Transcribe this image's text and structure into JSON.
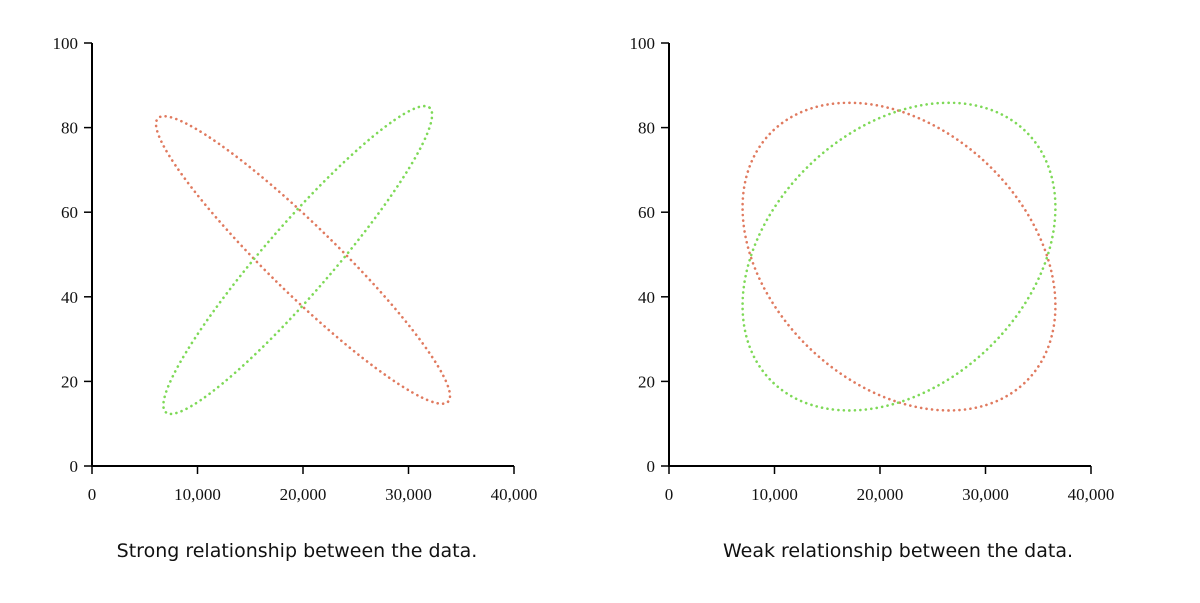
{
  "chart_data": [
    {
      "type": "scatter",
      "caption": "Strong relationship between the data.",
      "xlim": [
        0,
        40000
      ],
      "ylim": [
        0,
        100
      ],
      "x_ticks": [
        0,
        10000,
        20000,
        30000,
        40000
      ],
      "x_tick_labels": [
        "0",
        "10,000",
        "20,000",
        "30,000",
        "40,000"
      ],
      "y_ticks": [
        0,
        20,
        40,
        60,
        80,
        100
      ],
      "y_tick_labels": [
        "0",
        "20",
        "40",
        "60",
        "80",
        "100"
      ],
      "series": [
        {
          "color": "#e07a5f",
          "ellipse": {
            "cx": 20000,
            "cy": 48.7,
            "end_a": [
              6500,
              82
            ],
            "end_b": [
              34000,
              15
            ]
          }
        },
        {
          "color": "#7ed957",
          "ellipse": {
            "cx": 19500,
            "cy": 48.7,
            "end_a": [
              7500,
              13
            ],
            "end_b": [
              32500,
              85
            ]
          }
        }
      ]
    },
    {
      "type": "scatter",
      "caption": "Weak relationship between the data.",
      "xlim": [
        0,
        40000
      ],
      "ylim": [
        0,
        100
      ],
      "x_ticks": [
        0,
        10000,
        20000,
        30000,
        40000
      ],
      "x_tick_labels": [
        "0",
        "10,000",
        "20,000",
        "30,000",
        "40,000"
      ],
      "y_ticks": [
        0,
        20,
        40,
        60,
        80,
        100
      ],
      "y_tick_labels": [
        "0",
        "20",
        "40",
        "60",
        "80",
        "100"
      ],
      "series": [
        {
          "color": "#e07a5f",
          "ellipse": {
            "cx": 21800,
            "cy": 49.5,
            "end_a": [
              9500,
              78
            ],
            "end_b": [
              34000,
              20
            ]
          }
        },
        {
          "color": "#7ed957",
          "ellipse": {
            "cx": 21800,
            "cy": 49.5,
            "end_a": [
              9500,
              20
            ],
            "end_b": [
              34000,
              78
            ]
          }
        }
      ]
    }
  ]
}
